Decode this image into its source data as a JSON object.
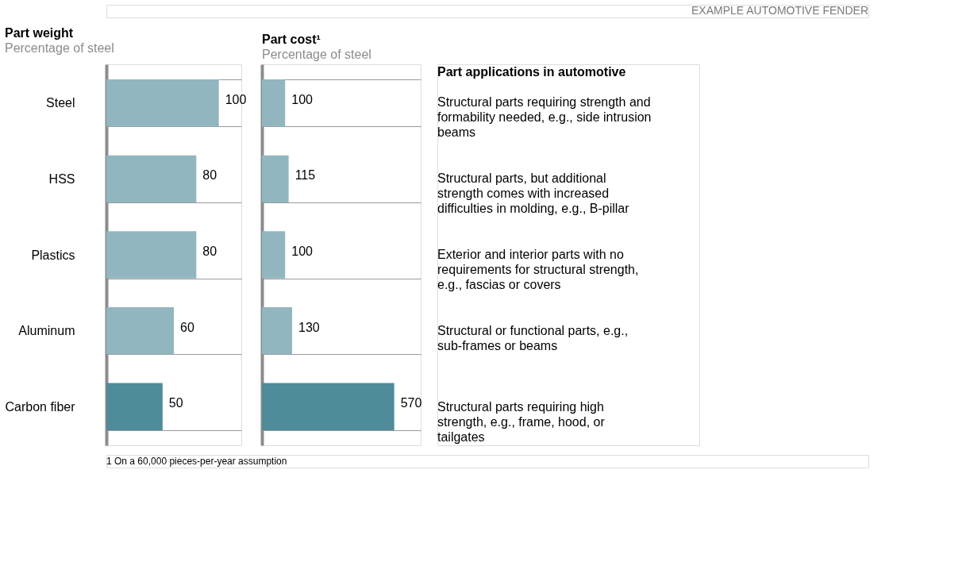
{
  "chart_data": [
    {
      "type": "bar",
      "orientation": "horizontal",
      "title": "Part weight",
      "subtitle": "Percentage of steel",
      "categories": [
        "Steel",
        "HSS",
        "Plastics",
        "Aluminum",
        "Carbon fiber"
      ],
      "values": [
        100,
        80,
        80,
        60,
        50
      ],
      "colors": [
        "#92b6c0",
        "#92b6c0",
        "#92b6c0",
        "#92b6c0",
        "#4f8b99"
      ],
      "data_labels": true,
      "tick_labels": "y",
      "grid": "y",
      "annotations": [
        "EXAMPLE AUTOMOTIVE FENDER",
        "1 On a 60,000 pieces-per-year assumption"
      ]
    },
    {
      "type": "bar",
      "orientation": "horizontal",
      "title": "Part cost¹",
      "subtitle": "Percentage of steel",
      "values": [
        100,
        115,
        100,
        130,
        570
      ],
      "colors": [
        "#92b6c0",
        "#92b6c0",
        "#92b6c0",
        "#92b6c0",
        "#4f8b99"
      ],
      "data_labels": true,
      "tick_labels": false,
      "grid": "y"
    },
    {
      "type": "other",
      "title": "Part applications in automotive",
      "annotations": [
        "Structural parts requiring strength and formability needed, e.g., side intrusion beams",
        "Structural parts, but additional strength comes with increased difficulties in molding, e.g., B-pillar",
        "Exterior and interior parts with no requirements for structural strength, e.g., fascias or covers",
        "Structural or functional parts, e.g., sub-frames or beams",
        "Structural parts requiring high strength, e.g., frame, hood, or tailgates"
      ]
    }
  ]
}
